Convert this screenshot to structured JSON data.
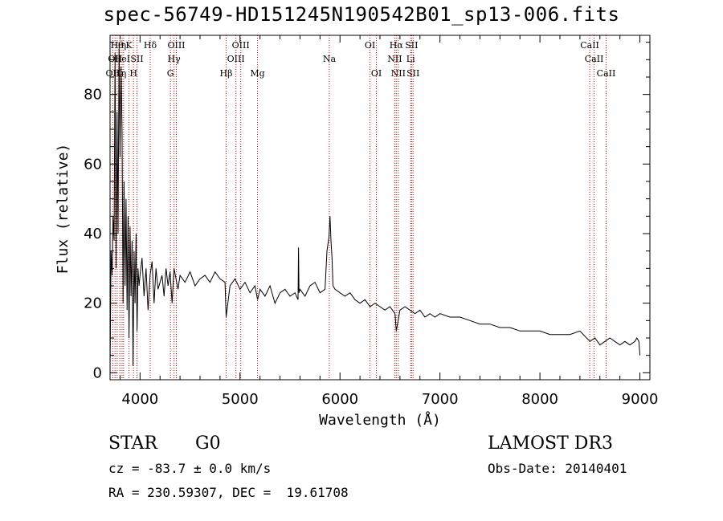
{
  "title": "spec-56749-HD151245N190542B01_sp13-006.fits",
  "footer": {
    "class_label": "STAR",
    "subclass": "G0",
    "cz": "cz = -83.7 ± 0.0 km/s",
    "coords": "RA = 230.59307, DEC =  19.61708",
    "survey": "LAMOST DR3",
    "obs_date": "Obs-Date: 20140401"
  },
  "colors": {
    "line_marker": "#cc0000",
    "spectrum": "#000000",
    "axis": "#000000"
  },
  "chart_data": {
    "type": "line",
    "title": "spec-56749-HD151245N190542B01_sp13-006.fits",
    "xlabel": "Wavelength (Å)",
    "ylabel": "Flux (relative)",
    "xlim": [
      3700,
      9100
    ],
    "ylim": [
      -2,
      97
    ],
    "xticks": [
      4000,
      5000,
      6000,
      7000,
      8000,
      9000
    ],
    "yticks": [
      0,
      20,
      40,
      60,
      80
    ],
    "grid": false,
    "series": [
      {
        "name": "spectrum",
        "x": [
          3700,
          3710,
          3720,
          3730,
          3740,
          3750,
          3760,
          3770,
          3780,
          3790,
          3800,
          3810,
          3820,
          3830,
          3840,
          3850,
          3860,
          3870,
          3880,
          3890,
          3900,
          3910,
          3920,
          3930,
          3940,
          3950,
          3960,
          3970,
          3980,
          3990,
          4000,
          4020,
          4040,
          4060,
          4080,
          4100,
          4120,
          4140,
          4160,
          4180,
          4200,
          4220,
          4240,
          4260,
          4280,
          4300,
          4320,
          4340,
          4360,
          4380,
          4400,
          4450,
          4500,
          4550,
          4600,
          4650,
          4700,
          4750,
          4800,
          4850,
          4861,
          4900,
          4950,
          5000,
          5050,
          5100,
          5150,
          5175,
          5200,
          5250,
          5300,
          5350,
          5400,
          5450,
          5500,
          5550,
          5580,
          5585,
          5590,
          5600,
          5650,
          5700,
          5750,
          5800,
          5850,
          5870,
          5890,
          5900,
          5910,
          5920,
          5930,
          5950,
          6000,
          6050,
          6100,
          6150,
          6200,
          6250,
          6300,
          6350,
          6400,
          6450,
          6500,
          6550,
          6563,
          6600,
          6650,
          6700,
          6750,
          6800,
          6850,
          6900,
          6950,
          7000,
          7100,
          7200,
          7300,
          7400,
          7500,
          7600,
          7700,
          7800,
          7900,
          8000,
          8100,
          8200,
          8300,
          8400,
          8500,
          8550,
          8600,
          8650,
          8700,
          8750,
          8800,
          8850,
          8900,
          8950,
          8970,
          8990,
          9000
        ],
        "values": [
          0,
          35,
          28,
          45,
          38,
          92,
          30,
          75,
          40,
          95,
          62,
          88,
          70,
          20,
          55,
          25,
          50,
          18,
          45,
          10,
          42,
          22,
          38,
          2,
          35,
          20,
          40,
          12,
          30,
          25,
          28,
          33,
          22,
          30,
          18,
          28,
          32,
          20,
          30,
          24,
          26,
          28,
          22,
          30,
          25,
          29,
          20,
          30,
          27,
          24,
          28,
          26,
          29,
          25,
          27,
          28,
          26,
          29,
          27,
          26,
          16,
          25,
          27,
          24,
          26,
          23,
          25,
          21,
          24,
          22,
          25,
          20,
          23,
          24,
          22,
          23,
          21,
          36,
          23,
          24,
          22,
          25,
          26,
          23,
          24,
          35,
          39,
          45,
          38,
          33,
          25,
          24,
          23,
          22,
          23,
          21,
          20,
          21,
          19,
          20,
          19,
          18,
          19,
          17,
          12,
          18,
          19,
          18,
          17,
          18,
          16,
          17,
          16,
          17,
          16,
          16,
          15,
          14,
          14,
          13,
          13,
          12,
          12,
          12,
          11,
          11,
          11,
          12,
          9,
          10,
          8,
          9,
          10,
          9,
          8,
          9,
          8,
          9,
          10,
          9,
          5
        ]
      }
    ],
    "line_markers": [
      {
        "wavelength": 3727,
        "label": "OII",
        "row": 3
      },
      {
        "wavelength": 3750,
        "label": "OII",
        "row": 2
      },
      {
        "wavelength": 3771,
        "label": "Hθ",
        "row": 1
      },
      {
        "wavelength": 3798,
        "label": "Hη",
        "row": 3
      },
      {
        "wavelength": 3820,
        "label": "HeI",
        "row": 2
      },
      {
        "wavelength": 3835,
        "label": "η",
        "row": 1
      },
      {
        "wavelength": 3889,
        "label": "K",
        "row": 1
      },
      {
        "wavelength": 3934,
        "label": "H",
        "row": 3
      },
      {
        "wavelength": 3969,
        "label": "SII",
        "row": 2
      },
      {
        "wavelength": 4102,
        "label": "Hδ",
        "row": 1
      },
      {
        "wavelength": 4304,
        "label": "G",
        "row": 3
      },
      {
        "wavelength": 4340,
        "label": "Hγ",
        "row": 2
      },
      {
        "wavelength": 4363,
        "label": "OIII",
        "row": 1
      },
      {
        "wavelength": 4861,
        "label": "Hβ",
        "row": 3
      },
      {
        "wavelength": 4959,
        "label": "OIII",
        "row": 2
      },
      {
        "wavelength": 5007,
        "label": "OIII",
        "row": 1
      },
      {
        "wavelength": 5175,
        "label": "Mg",
        "row": 3
      },
      {
        "wavelength": 5893,
        "label": "Na",
        "row": 2
      },
      {
        "wavelength": 6300,
        "label": "OI",
        "row": 1
      },
      {
        "wavelength": 6364,
        "label": "OI",
        "row": 3
      },
      {
        "wavelength": 6548,
        "label": "NII",
        "row": 2
      },
      {
        "wavelength": 6563,
        "label": "Hα",
        "row": 1
      },
      {
        "wavelength": 6583,
        "label": "NII",
        "row": 3
      },
      {
        "wavelength": 6707,
        "label": "Li",
        "row": 2
      },
      {
        "wavelength": 6716,
        "label": "SII",
        "row": 1
      },
      {
        "wavelength": 6731,
        "label": "SII",
        "row": 3
      },
      {
        "wavelength": 8498,
        "label": "CaII",
        "row": 1
      },
      {
        "wavelength": 8542,
        "label": "CaII",
        "row": 2
      },
      {
        "wavelength": 8662,
        "label": "CaII",
        "row": 3
      }
    ]
  }
}
